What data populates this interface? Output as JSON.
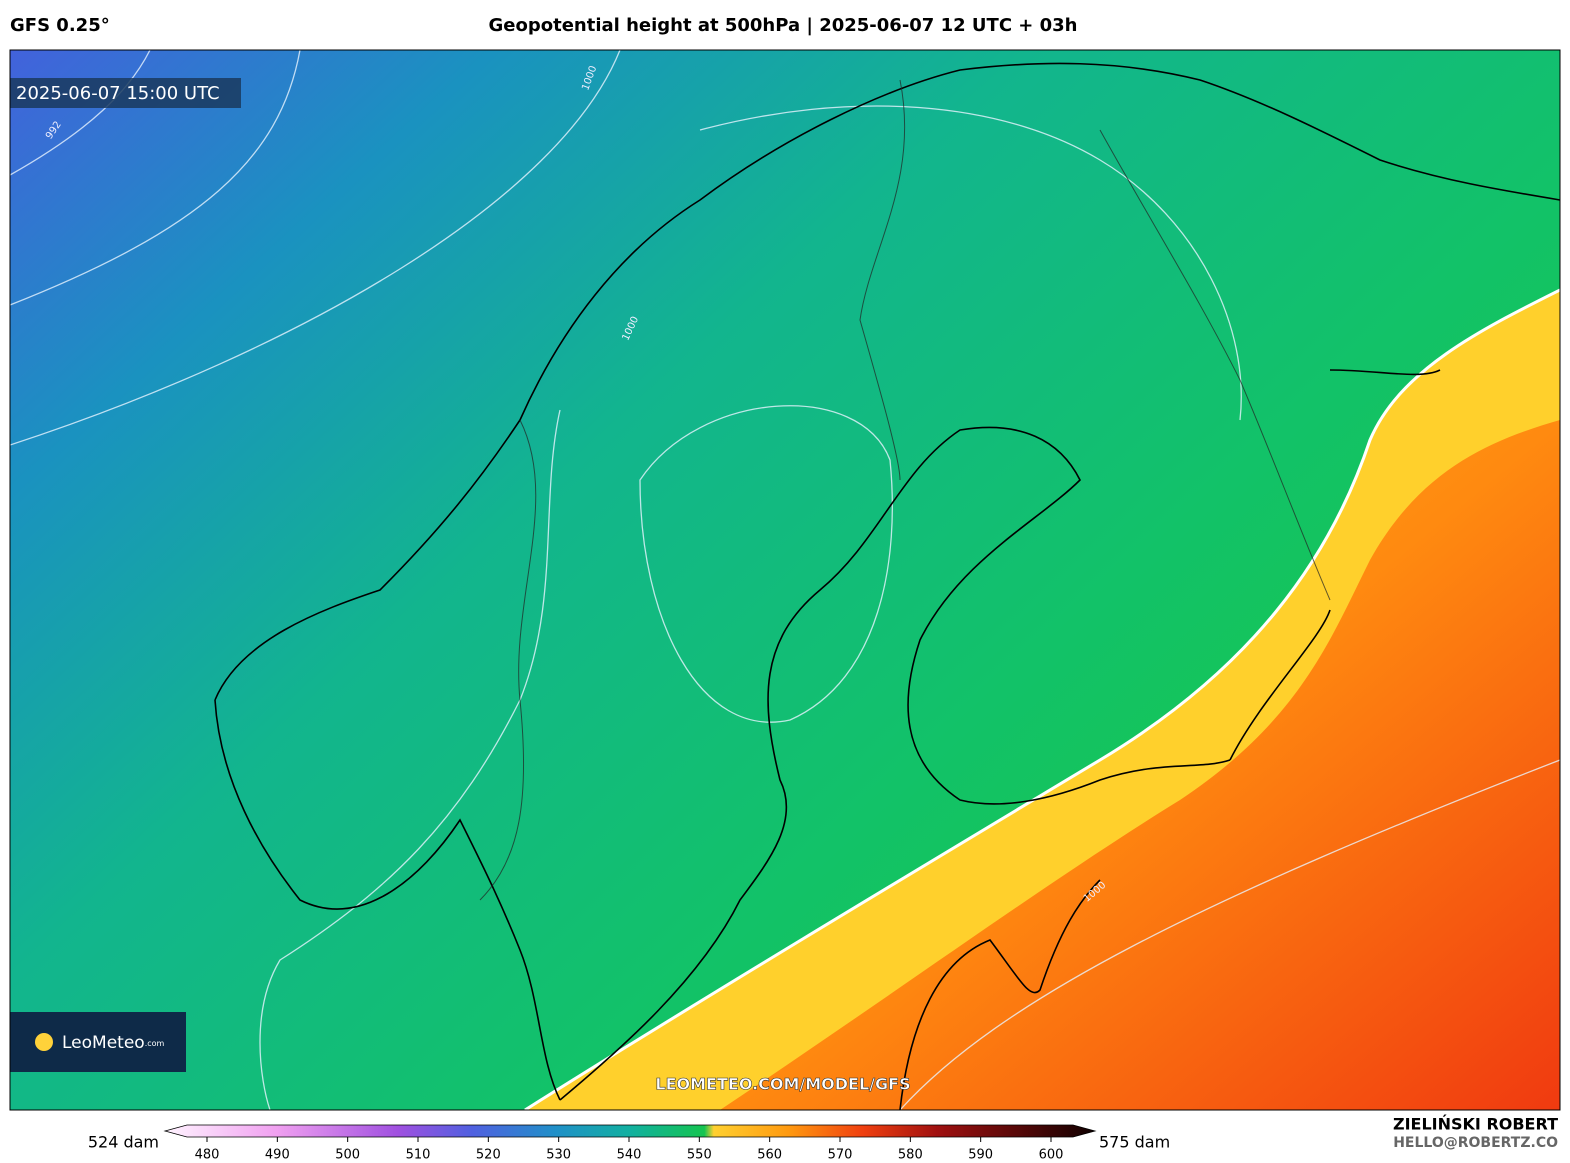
{
  "header": {
    "model": "GFS 0.25°",
    "title": "Geopotential height at 500hPa | 2025-06-07 12 UTC + 03h"
  },
  "map": {
    "valid_time": "2025-06-07 15:00 UTC",
    "contour_labels": [
      "1000",
      "992",
      "1000",
      "1000"
    ],
    "logo": {
      "name": "LeoMeteo",
      "suffix": ".com"
    },
    "watermark": "LEOMETEO.COM/MODEL/GFS"
  },
  "colorbar": {
    "min_label": "524 dam",
    "max_label": "575 dam",
    "ticks": [
      480,
      490,
      500,
      510,
      520,
      530,
      540,
      550,
      560,
      570,
      580,
      590,
      600
    ]
  },
  "footer": {
    "author": "ZIELIŃSKI ROBERT",
    "email": "HELLO@ROBERTZ.CO"
  }
}
